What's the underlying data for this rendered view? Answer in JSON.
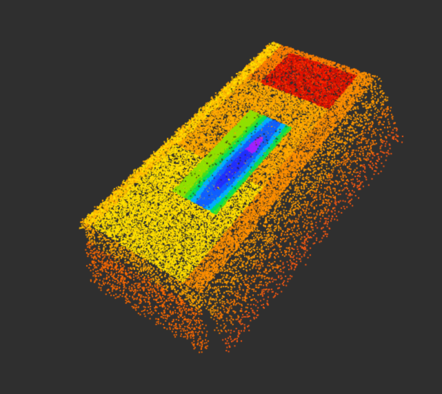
{
  "viewer": {
    "background_color": "#2f2f2f",
    "colormap": [
      "#ff0000",
      "#ff8c00",
      "#ffd700",
      "#ffff00",
      "#7cfc00",
      "#00e050",
      "#00c8ff",
      "#0040ff",
      "#8000ff"
    ],
    "point_cloud": {
      "description_icon": "point-cloud-icon"
    }
  }
}
